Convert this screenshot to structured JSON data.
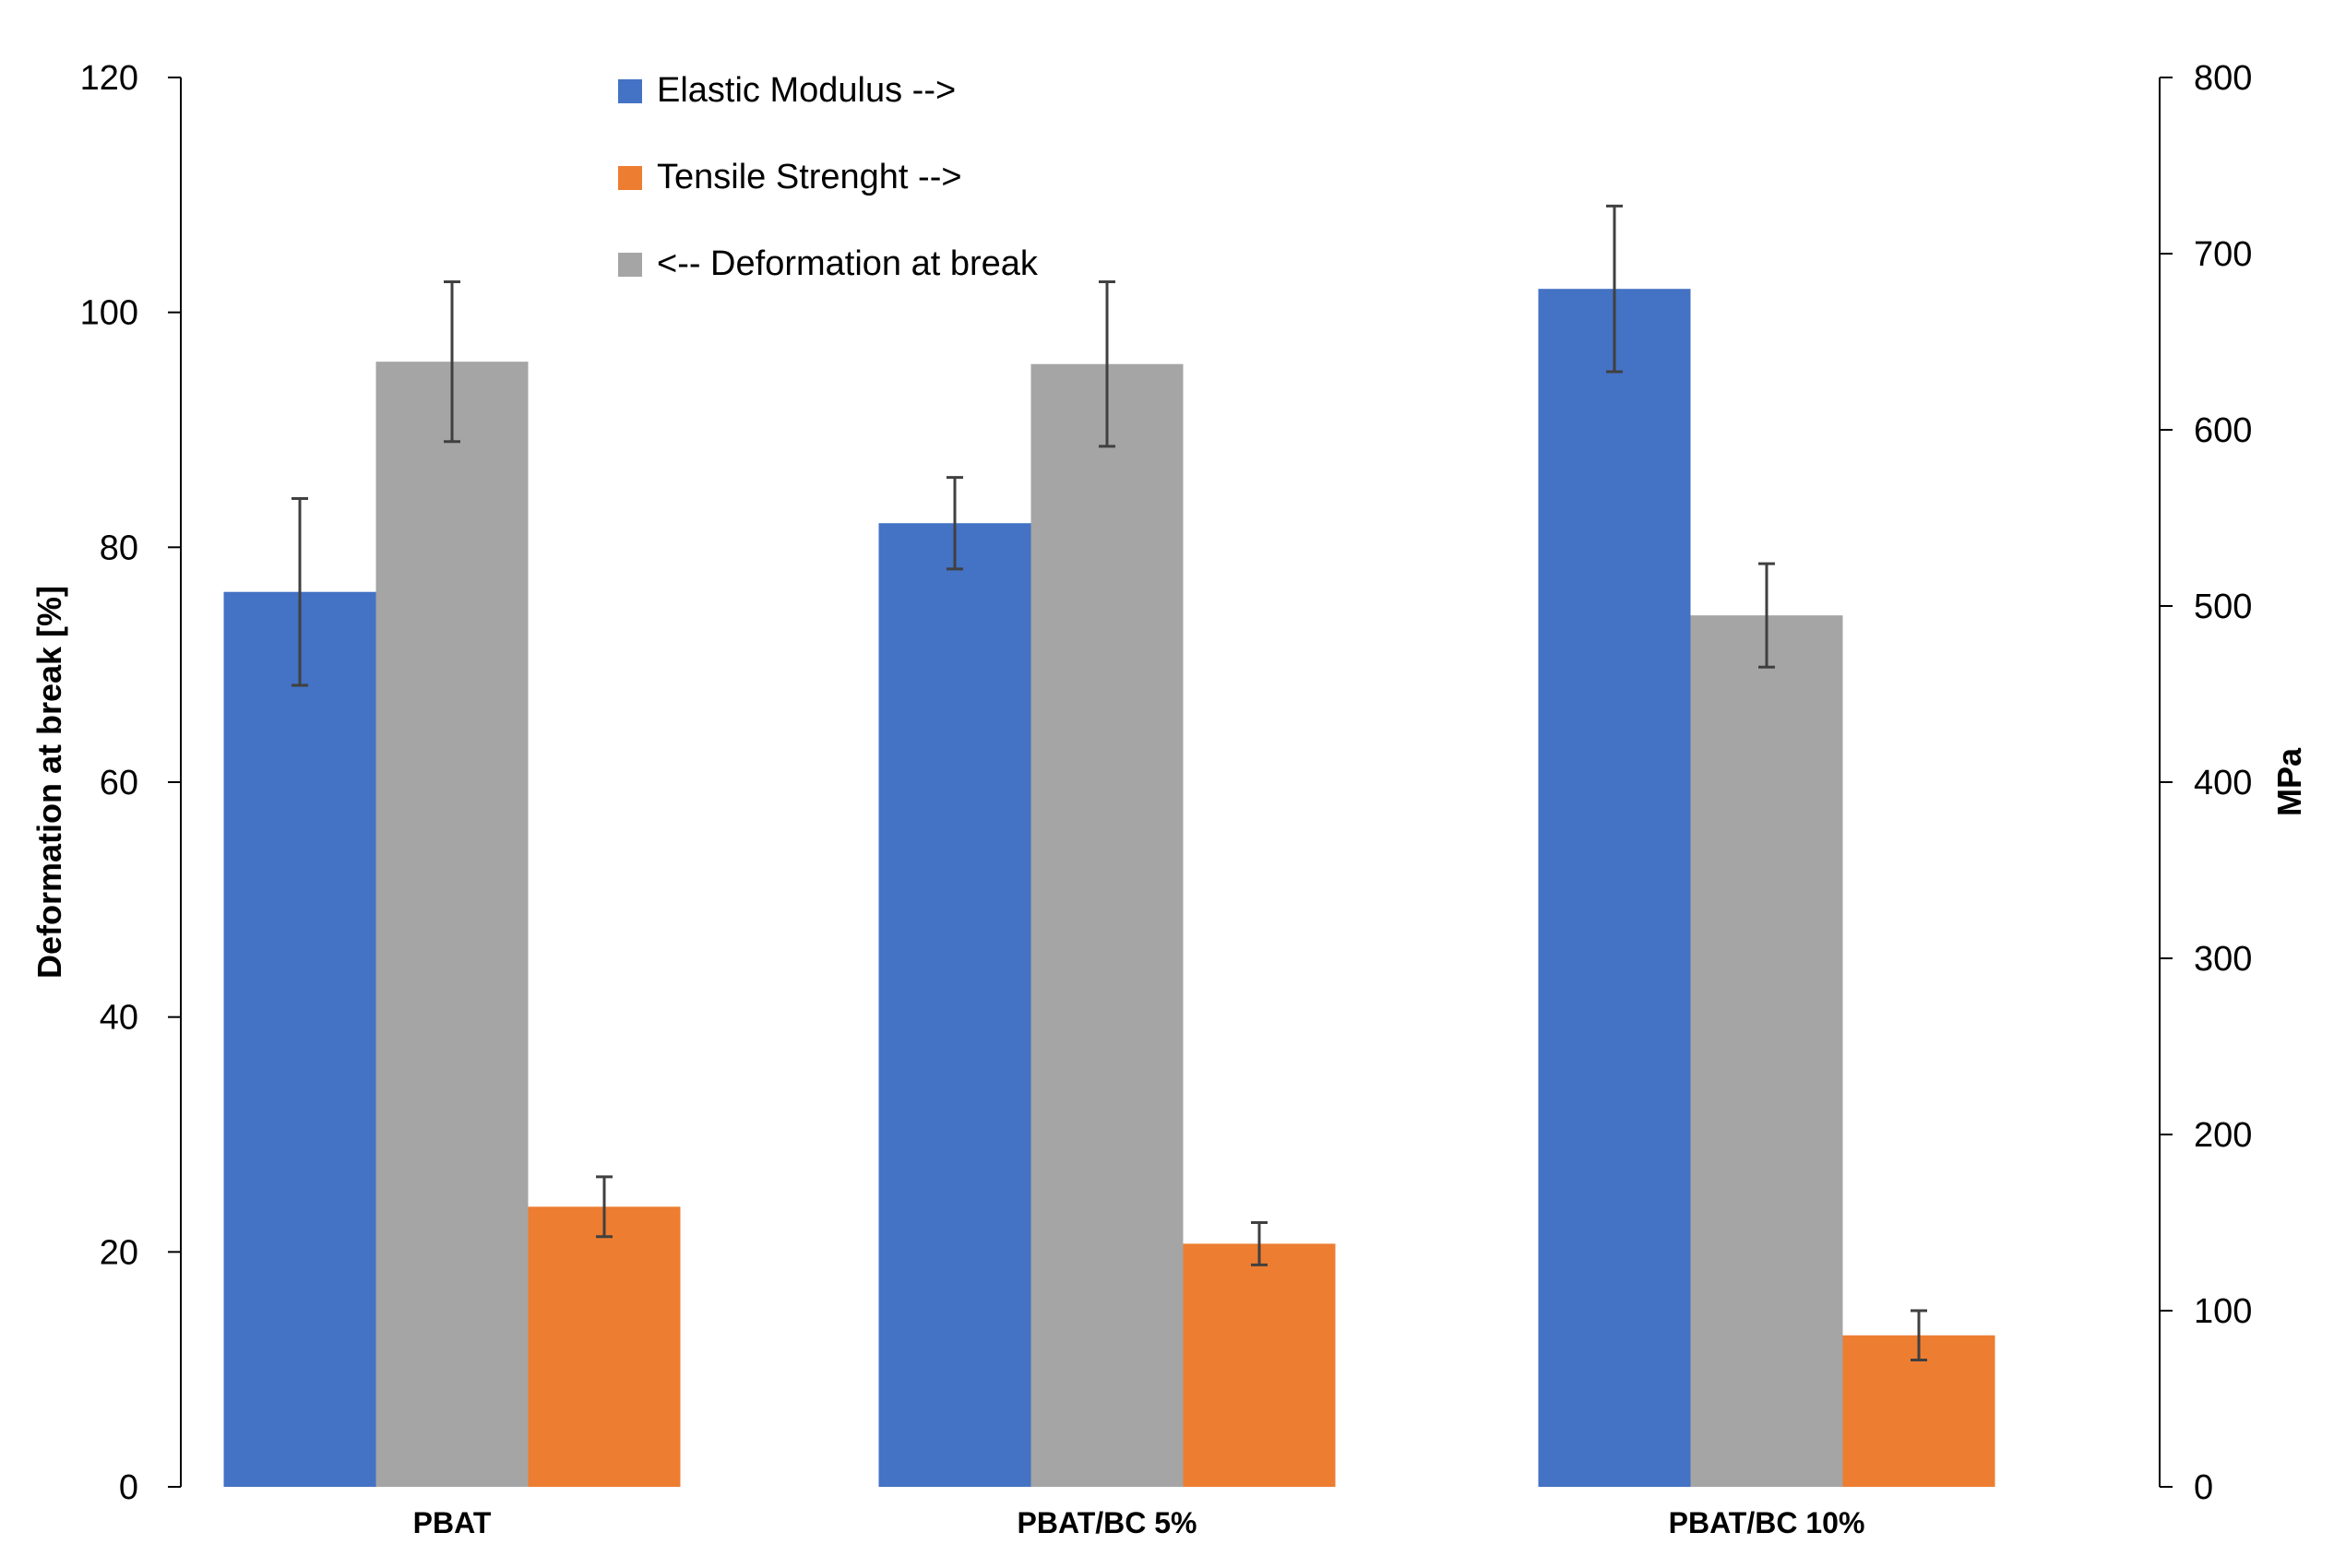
{
  "chart_data": {
    "type": "bar",
    "title": "",
    "categories": [
      "PBAT",
      "PBAT/BC 5%",
      "PBAT/BC 10%"
    ],
    "series": [
      {
        "name": "Elastic Modulus -->",
        "axis": "right",
        "color": "#4472C4",
        "values": [
          508,
          547,
          680
        ],
        "errors": [
          53,
          26,
          47
        ]
      },
      {
        "name": "<-- Deformation at break",
        "axis": "left",
        "color": "#A5A5A5",
        "values": [
          95.8,
          95.6,
          74.2
        ],
        "errors": [
          6.8,
          7.0,
          4.4
        ]
      },
      {
        "name": "Tensile Strenght -->",
        "axis": "right",
        "color": "#ED7D31",
        "values": [
          159,
          138,
          86
        ],
        "errors": [
          17,
          12,
          14
        ]
      }
    ],
    "left_axis": {
      "label": "Deformation at break [%]",
      "min": 0,
      "max": 120,
      "ticks": [
        0,
        20,
        40,
        60,
        80,
        100,
        120
      ]
    },
    "right_axis": {
      "label": "MPa",
      "min": 0,
      "max": 800,
      "ticks": [
        0,
        100,
        200,
        300,
        400,
        500,
        600,
        700,
        800
      ]
    },
    "legend": {
      "position": "top-center",
      "entries": [
        "Elastic Modulus -->",
        "Tensile Strenght -->",
        "<-- Deformation at break"
      ],
      "colors": [
        "#4472C4",
        "#ED7D31",
        "#A5A5A5"
      ]
    },
    "grid": false
  }
}
